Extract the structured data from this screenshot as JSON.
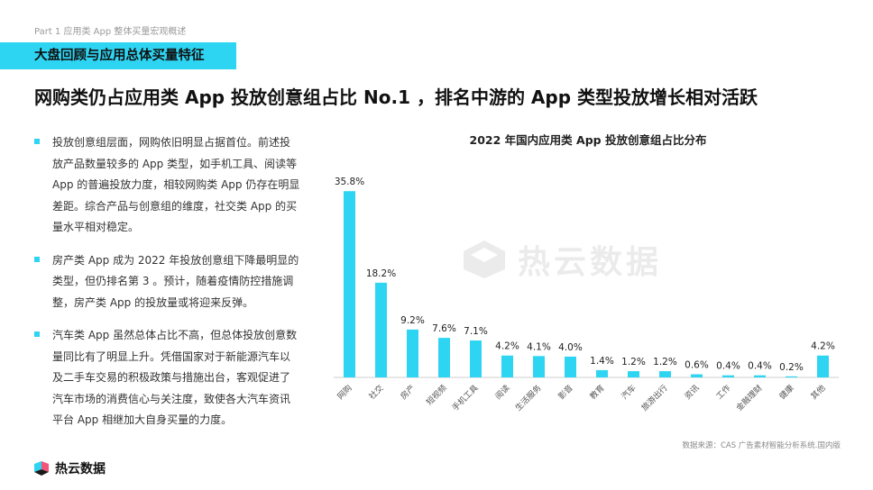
{
  "header": {
    "part_label": "Part 1 应用类 App 整体买量宏观概述",
    "section_tag": "大盘回顾与应用总体买量特征",
    "headline": "网购类仍占应用类 App 投放创意组占比 No.1 ，排名中游的 App 类型投放增长相对活跃"
  },
  "bullets": [
    "投放创意组层面，网购依旧明显占据首位。前述投放产品数量较多的 App 类型，如手机工具、阅读等 App 的普遍投放力度，相较网购类 App 仍存在明显差距。综合产品与创意组的维度，社交类 App 的买量水平相对稳定。",
    "房产类 App 成为 2022 年投放创意组下降最明显的类型，但仍排名第 3 。预计，随着疫情防控措施调整，房产类 App 的投放量或将迎来反弹。",
    "汽车类 App 虽然总体占比不高，但总体投放创意数量同比有了明显上升。凭借国家对于新能源汽车以及二手车交易的积极政策与措施出台，客观促进了汽车市场的消费信心与关注度，致使各大汽车资讯平台 App 相继加大自身买量的力度。"
  ],
  "watermark_text": "热云数据",
  "source": "数据来源：CAS 广告素材智能分析系统.国内版",
  "logo_text": "热云数据",
  "colors": {
    "accent": "#2ed5f3",
    "bar": "#2ed5f3"
  },
  "chart_data": {
    "type": "bar",
    "title": "2022 年国内应用类 App 投放创意组占比分布",
    "categories": [
      "网购",
      "社交",
      "房产",
      "短视频",
      "手机工具",
      "阅读",
      "生活服务",
      "影音",
      "教育",
      "汽车",
      "旅游出行",
      "资讯",
      "工作",
      "金融理财",
      "健康",
      "其他"
    ],
    "values": [
      35.8,
      18.2,
      9.2,
      7.6,
      7.1,
      4.2,
      4.1,
      4.0,
      1.4,
      1.2,
      1.2,
      0.6,
      0.4,
      0.4,
      0.2,
      4.2
    ],
    "value_labels": [
      "35.8%",
      "18.2%",
      "9.2%",
      "7.6%",
      "7.1%",
      "4.2%",
      "4.1%",
      "4.0%",
      "1.4%",
      "1.2%",
      "1.2%",
      "0.6%",
      "0.4%",
      "0.4%",
      "0.2%",
      "4.2%"
    ],
    "ylim": [
      0,
      40
    ],
    "grid": false,
    "legend": "none"
  }
}
